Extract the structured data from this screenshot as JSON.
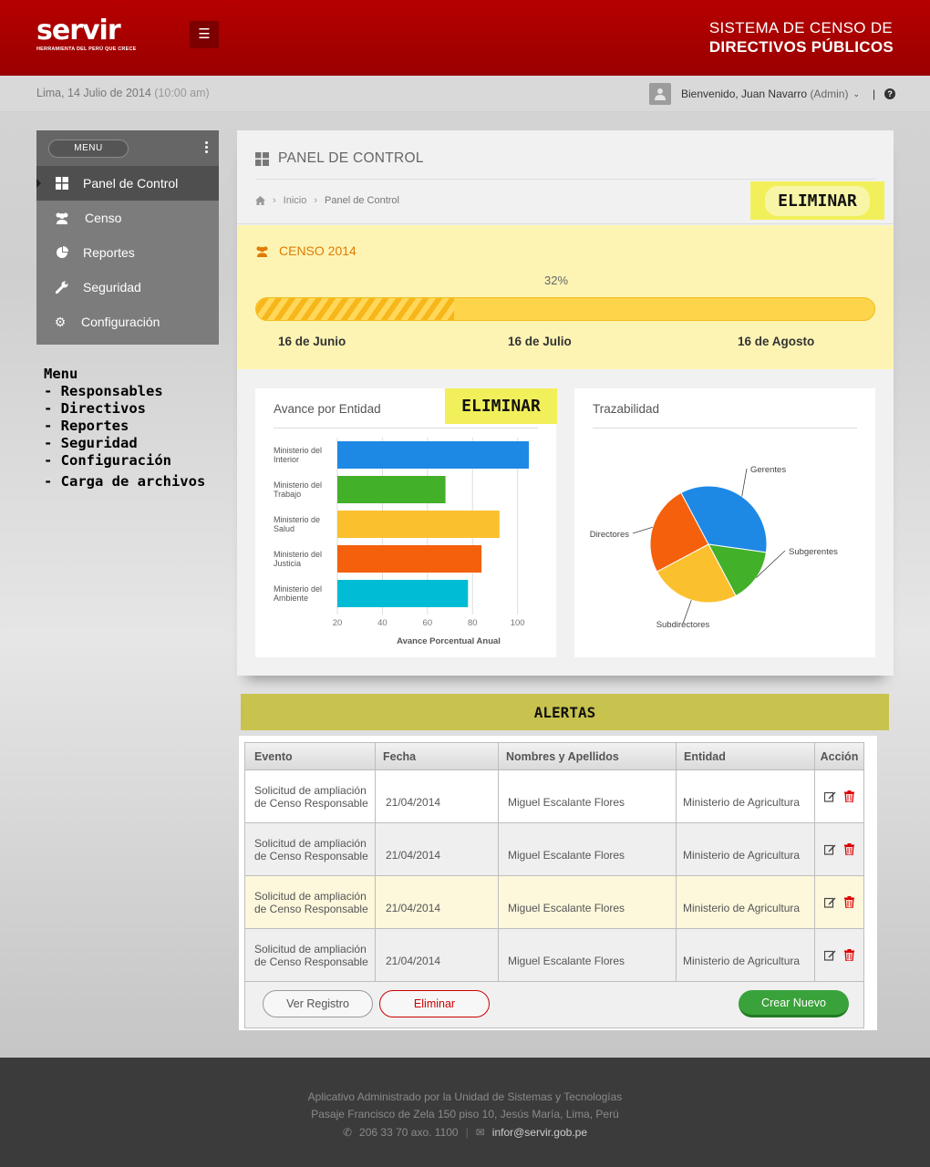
{
  "header": {
    "logo_text": "servir",
    "logo_tagline": "HERRAMIENTA DEL PERÚ QUE CRECE",
    "system_title_line1": "SISTEMA DE CENSO  DE",
    "system_title_line2": "DIRECTIVOS PÚBLICOS"
  },
  "infobar": {
    "date": "Lima, 14 Julio de 2014",
    "time": "(10:00 am)",
    "welcome": "Bienvenido, Juan Navarro",
    "role": "(Admin)",
    "separator": "|"
  },
  "sidebar": {
    "menu_label": "MENU",
    "items": [
      {
        "label": "Panel de Control",
        "icon": "windows-icon",
        "active": true
      },
      {
        "label": "Censo",
        "icon": "users-icon"
      },
      {
        "label": "Reportes",
        "icon": "pie-chart-icon"
      },
      {
        "label": "Seguridad",
        "icon": "wrench-icon"
      },
      {
        "label": "Configuración",
        "icon": "gear-icon"
      }
    ]
  },
  "menu_notes": {
    "title": "Menu",
    "items": [
      "- Responsables",
      "- Directivos",
      "- Reportes",
      "- Seguridad",
      "- Configuración",
      "- Carga de archivos"
    ]
  },
  "panel": {
    "title": "PANEL DE CONTROL",
    "breadcrumb": [
      "Inicio",
      "Panel de Control"
    ],
    "eliminar_label": "ELIMINAR"
  },
  "censo": {
    "title": "CENSO 2014",
    "progress": 0.32,
    "progress_label": "32%",
    "dates": [
      "16 de Junio",
      "16 de Julio",
      "16 de Agosto"
    ]
  },
  "avance_card": {
    "title": "Avance por Entidad",
    "eliminar_label": "ELIMINAR"
  },
  "traza_card": {
    "title": "Trazabilidad"
  },
  "chart_data": [
    {
      "type": "bar",
      "orientation": "horizontal",
      "title": "Avance por Entidad",
      "categories": [
        "Ministerio del Interior",
        "Ministerio del Trabajo",
        "Ministerio de Salud",
        "Ministerio del Justicia",
        "Ministerio del Ambiente"
      ],
      "values": [
        105,
        68,
        92,
        84,
        78
      ],
      "colors": [
        "#1e88e5",
        "#43b02a",
        "#fbc02d",
        "#f4600c",
        "#00bcd4"
      ],
      "xlabel": "Avance Porcentual Anual",
      "xlim": [
        20,
        105
      ],
      "xticks": [
        20,
        40,
        60,
        80,
        100
      ],
      "grid": true
    },
    {
      "type": "pie",
      "title": "Trazabilidad",
      "labels": [
        "Gerentes",
        "Subgerentes",
        "Subdirectores",
        "Directores"
      ],
      "values": [
        35,
        15,
        25,
        25
      ],
      "colors": [
        "#1e88e5",
        "#43b02a",
        "#fbc02d",
        "#f4600c"
      ]
    }
  ],
  "alerts": {
    "title": "ALERTAS",
    "columns": [
      "Evento",
      "Fecha",
      "Nombres y Apellidos",
      "Entidad",
      "Acción"
    ],
    "rows": [
      {
        "evento": "Solicitud de ampliación de Censo Responsable",
        "fecha": "21/04/2014",
        "nombre": "Miguel Escalante Flores",
        "entidad": "Ministerio de Agricultura"
      },
      {
        "evento": "Solicitud de ampliación de Censo Responsable",
        "fecha": "21/04/2014",
        "nombre": "Miguel Escalante Flores",
        "entidad": "Ministerio de Agricultura"
      },
      {
        "evento": "Solicitud de ampliación de Censo Responsable",
        "fecha": "21/04/2014",
        "nombre": "Miguel Escalante Flores",
        "entidad": "Ministerio de Agricultura"
      },
      {
        "evento": "Solicitud de ampliación de Censo Responsable",
        "fecha": "21/04/2014",
        "nombre": "Miguel Escalante Flores",
        "entidad": "Ministerio de Agricultura"
      }
    ],
    "buttons": {
      "view": "Ver Registro",
      "delete": "Eliminar",
      "create": "Crear Nuevo"
    }
  },
  "footer": {
    "line1": "Aplicativo Administrado por la Unidad de Sistemas y Tecnologías",
    "line2": "Pasaje Francisco de Zela 150 piso 10, Jesús María, Lima, Perú",
    "phone": "206 33 70 axo. 1100",
    "email": "infor@servir.gob.pe"
  },
  "colors": {
    "brand_red": "#a50000",
    "censo_band": "#fdf4b4",
    "progress_orange": "#f7b71b",
    "create_green": "#3aa23a",
    "delete_red": "#cc0000",
    "annotation_yellow": "#f2f05a"
  }
}
